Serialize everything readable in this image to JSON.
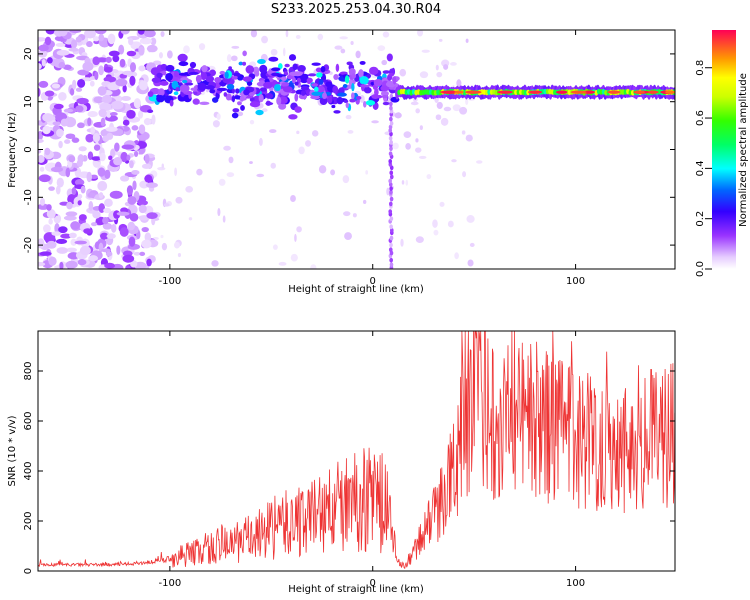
{
  "figure": {
    "title": "S233.2025.253.04.30.R04"
  },
  "chart_data": [
    {
      "type": "heatmap",
      "xlabel": "Height of straight line (km)",
      "ylabel": "Frequency (Hz)",
      "xlim": [
        -165,
        149
      ],
      "ylim": [
        -25,
        25
      ],
      "xticks": [
        -100,
        0,
        100
      ],
      "yticks": [
        -20,
        -10,
        0,
        10,
        20
      ],
      "colorbar": {
        "label": "Normalized spectral amplitude",
        "range": [
          0,
          0.95
        ],
        "ticks": [
          0.0,
          0.2,
          0.4,
          0.6,
          0.8
        ]
      },
      "features": {
        "carrier_frequency_hz": 12,
        "carrier_start_km": 12,
        "carrier_end_km": 149,
        "dispersed_band_km": [
          -110,
          12
        ],
        "dispersed_band_hz": [
          6,
          20
        ],
        "noise_region_km": [
          -165,
          -108
        ],
        "spur_km": 9
      }
    },
    {
      "type": "line",
      "xlabel": "Height of straight line (km)",
      "ylabel": "SNR (10 * v/v)",
      "xlim": [
        -165,
        149
      ],
      "ylim": [
        0,
        960
      ],
      "xticks": [
        -100,
        0,
        100
      ],
      "yticks": [
        0,
        200,
        400,
        600,
        800
      ],
      "series": [
        {
          "name": "SNR",
          "color": "#ee3333",
          "x": [
            -165,
            -140,
            -120,
            -105,
            -90,
            -75,
            -60,
            -45,
            -30,
            -15,
            0,
            8,
            12,
            16,
            20,
            25,
            32,
            40,
            45,
            50,
            55,
            60,
            70,
            80,
            90,
            100,
            110,
            120,
            130,
            140,
            149
          ],
          "y": [
            25,
            25,
            28,
            40,
            70,
            100,
            130,
            180,
            220,
            260,
            300,
            250,
            30,
            20,
            70,
            150,
            250,
            400,
            600,
            700,
            650,
            620,
            660,
            600,
            560,
            540,
            520,
            510,
            500,
            540,
            570
          ]
        }
      ]
    }
  ]
}
